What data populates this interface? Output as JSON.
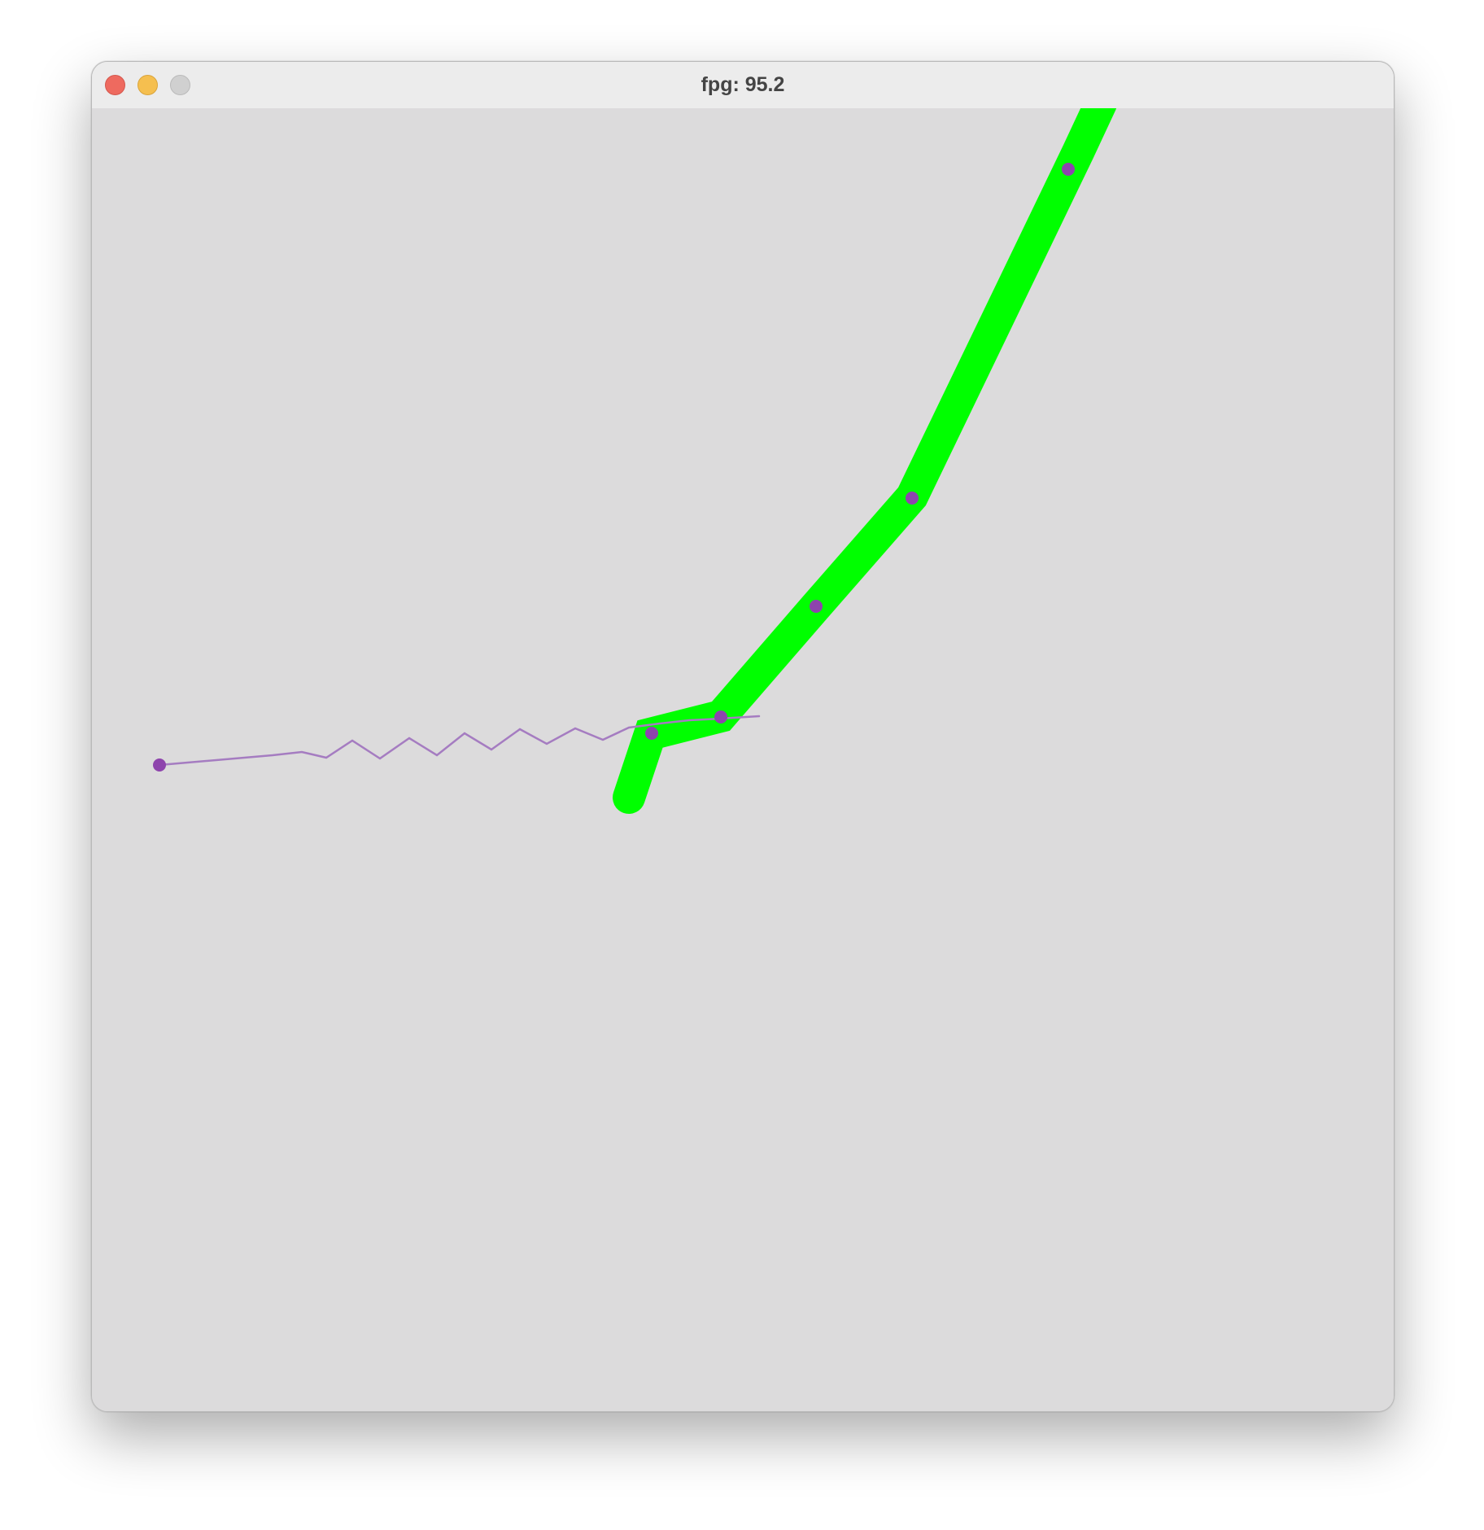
{
  "window": {
    "title": "fpg: 95.2"
  },
  "colors": {
    "canvas_background": "#dcdbdc",
    "thick_path": "#00ff00",
    "thin_path": "#a57cc1",
    "joint": "#8e44ad"
  },
  "icons": {
    "close": "traffic-light-close-icon",
    "minimize": "traffic-light-minimize-icon",
    "zoom": "traffic-light-zoom-icon"
  }
}
